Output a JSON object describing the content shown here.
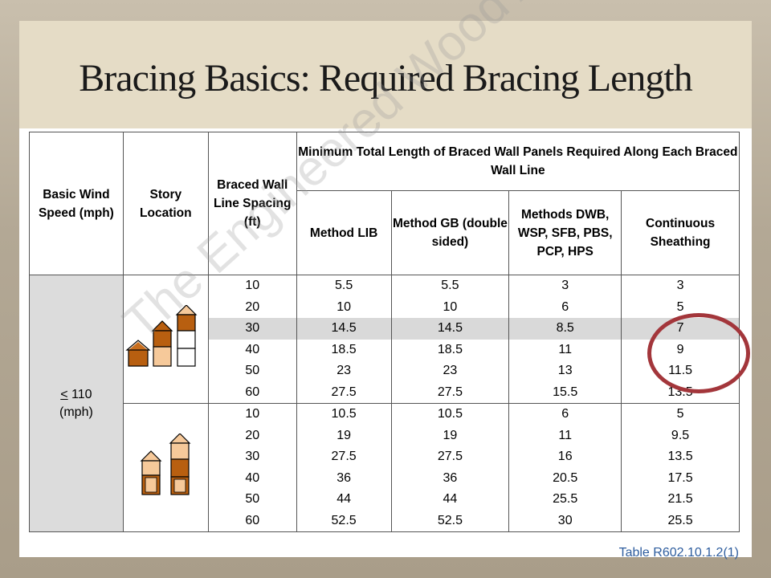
{
  "slide": {
    "title": "Bracing Basics: Required Bracing Length",
    "watermark": "The Engineered Wood Association",
    "table_ref": "Table R602.10.1.2(1)"
  },
  "table": {
    "headers": {
      "wind_speed": "Basic Wind Speed (mph)",
      "story_location": "Story Location",
      "spacing": "Braced Wall Line Spacing (ft)",
      "group": "Minimum Total Length of Braced Wall Panels Required Along Each Braced Wall Line",
      "lib": "Method LIB",
      "gb": "Method GB (double sided)",
      "methods": "Methods DWB, WSP, SFB, PBS, PCP, HPS",
      "continuous": "Continuous Sheathing"
    },
    "wind_speed": {
      "symbol": "<",
      "value": "110",
      "unit": "(mph)"
    },
    "story_icons": [
      "one-story-house-icon",
      "two-story-house-icon",
      "three-story-house-icon"
    ],
    "groups": [
      {
        "spacing": [
          "10",
          "20",
          "30",
          "40",
          "50",
          "60"
        ],
        "lib": [
          "5.5",
          "10",
          "14.5",
          "18.5",
          "23",
          "27.5"
        ],
        "gb": [
          "5.5",
          "10",
          "14.5",
          "18.5",
          "23",
          "27.5"
        ],
        "methods": [
          "3",
          "6",
          "8.5",
          "11",
          "13",
          "15.5"
        ],
        "continuous": [
          "3",
          "5",
          "7",
          "9",
          "11.5",
          "13.5"
        ]
      },
      {
        "spacing": [
          "10",
          "20",
          "30",
          "40",
          "50",
          "60"
        ],
        "lib": [
          "10.5",
          "19",
          "27.5",
          "36",
          "44",
          "52.5"
        ],
        "gb": [
          "10.5",
          "19",
          "27.5",
          "36",
          "44",
          "52.5"
        ],
        "methods": [
          "6",
          "11",
          "16",
          "20.5",
          "25.5",
          "30"
        ],
        "continuous": [
          "5",
          "9.5",
          "13.5",
          "17.5",
          "21.5",
          "25.5"
        ]
      }
    ]
  },
  "colors": {
    "highlight_row": "#d9d9d9",
    "circle": "#a3363b",
    "header_band": "#e5dcc6",
    "ref_text": "#2e5d9e"
  }
}
